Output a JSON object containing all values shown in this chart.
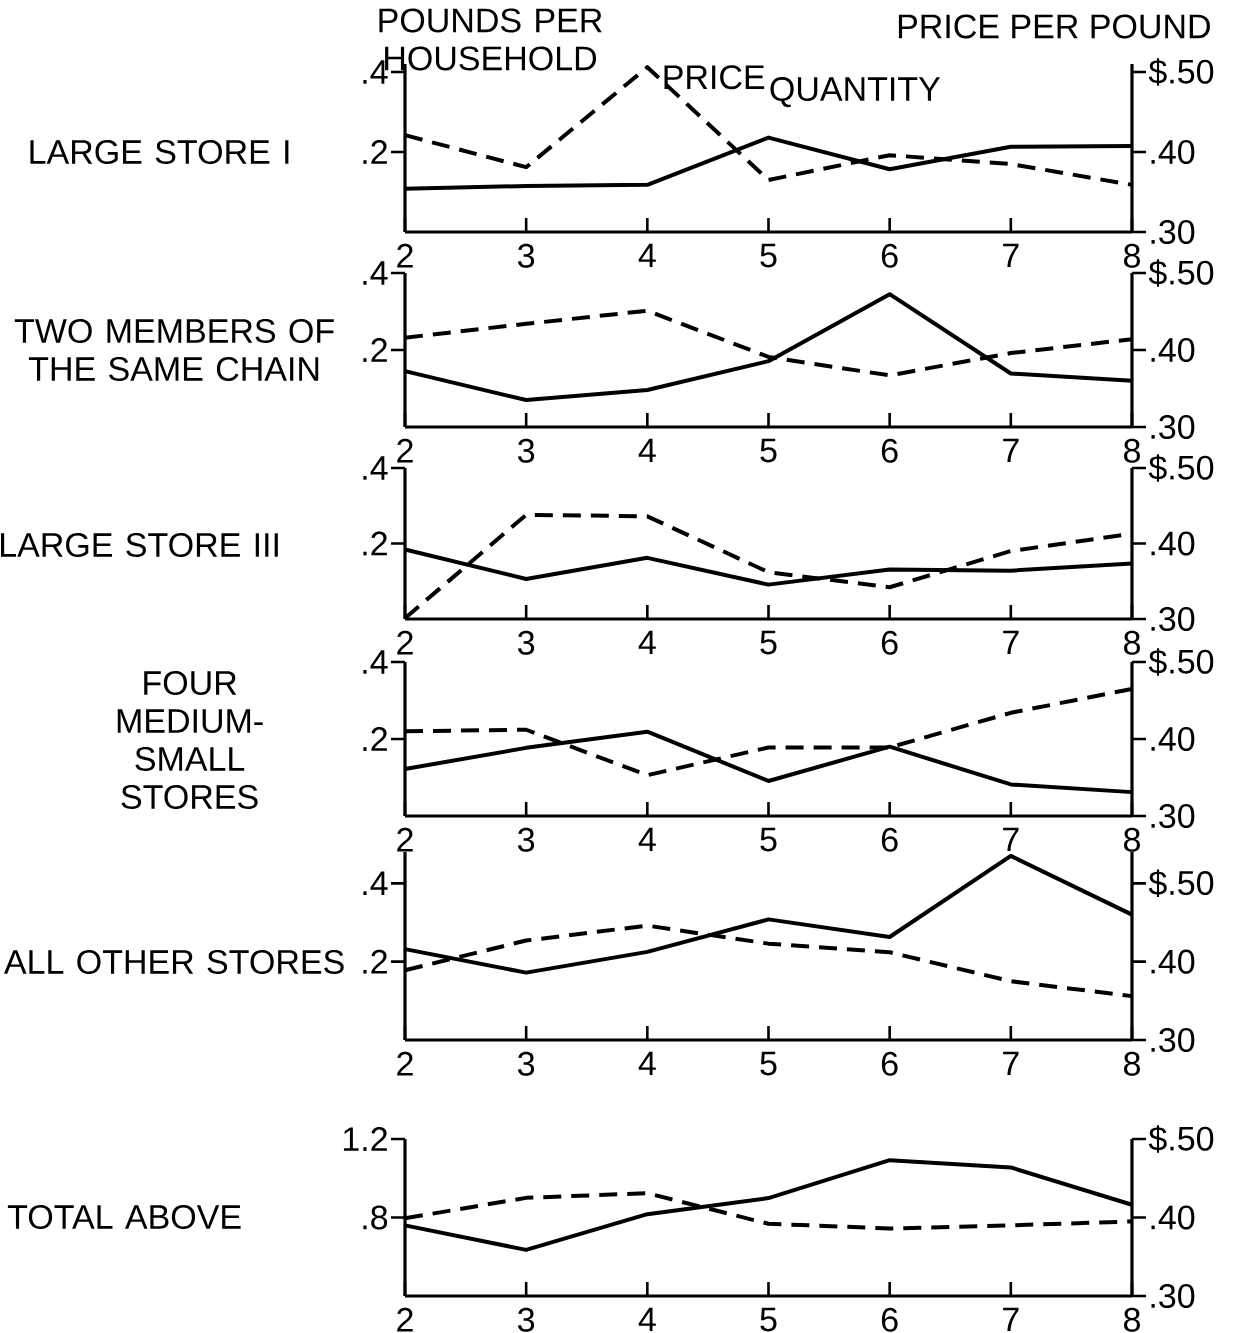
{
  "chart_data": [
    {
      "type": "line",
      "title": "LARGE STORE I",
      "ylabel": "POUNDS PER HOUSEHOLD",
      "y2label": "PRICE PER POUND",
      "x": [
        2,
        3,
        4,
        5,
        6,
        7,
        8
      ],
      "xlim": [
        2,
        8
      ],
      "xticks": [
        2,
        3,
        4,
        5,
        6,
        7,
        8
      ],
      "ylim": [
        0,
        0.42
      ],
      "yticks": [
        {
          "value": 0.2,
          "label": ".2"
        },
        {
          "value": 0.4,
          "label": ".4"
        }
      ],
      "y2lim": [
        0.3,
        0.51
      ],
      "y2ticks": [
        {
          "value": 0.3,
          "label": ".30"
        },
        {
          "value": 0.4,
          "label": ".40"
        },
        {
          "value": 0.5,
          "label": "$.50"
        }
      ],
      "marker": "none",
      "series": [
        {
          "name": "QUANTITY",
          "color": "#000000",
          "line_style": "solid",
          "values": [
            0.108,
            0.115,
            0.118,
            0.236,
            0.157,
            0.213,
            0.215
          ]
        },
        {
          "name": "PRICE",
          "color": "#000000",
          "line_style": "dashed",
          "axis": "y2",
          "values": [
            0.421,
            0.381,
            0.506,
            0.365,
            0.396,
            0.385,
            0.359
          ]
        }
      ]
    },
    {
      "type": "line",
      "title": "TWO MEMBERS OF THE SAME CHAIN",
      "x": [
        2,
        3,
        4,
        5,
        6,
        7,
        8
      ],
      "xlim": [
        2,
        8
      ],
      "xticks": [
        2,
        3,
        4,
        5,
        6,
        7,
        8
      ],
      "ylim": [
        0,
        0.4
      ],
      "yticks": [
        {
          "value": 0.2,
          "label": ".2"
        },
        {
          "value": 0.4,
          "label": ".4"
        }
      ],
      "y2lim": [
        0.3,
        0.5
      ],
      "y2ticks": [
        {
          "value": 0.3,
          "label": ".30"
        },
        {
          "value": 0.4,
          "label": ".40"
        },
        {
          "value": 0.5,
          "label": "$.50"
        }
      ],
      "marker": "none",
      "series": [
        {
          "color": "#000000",
          "line_style": "solid",
          "values": [
            0.145,
            0.07,
            0.096,
            0.171,
            0.345,
            0.139,
            0.12
          ]
        },
        {
          "color": "#000000",
          "line_style": "dashed",
          "axis": "y2",
          "values": [
            0.416,
            0.434,
            0.451,
            0.391,
            0.367,
            0.396,
            0.414
          ]
        }
      ]
    },
    {
      "type": "line",
      "title": "LARGE STORE III",
      "x": [
        2,
        3,
        4,
        5,
        6,
        7,
        8
      ],
      "xlim": [
        2,
        8
      ],
      "xticks": [
        2,
        3,
        4,
        5,
        6,
        7,
        8
      ],
      "ylim": [
        0,
        0.4
      ],
      "yticks": [
        {
          "value": 0.2,
          "label": ".2"
        },
        {
          "value": 0.4,
          "label": ".4"
        }
      ],
      "y2lim": [
        0.3,
        0.5
      ],
      "y2ticks": [
        {
          "value": 0.3,
          "label": ".30"
        },
        {
          "value": 0.4,
          "label": ".40"
        },
        {
          "value": 0.5,
          "label": "$.50"
        }
      ],
      "marker": "none",
      "series": [
        {
          "color": "#000000",
          "line_style": "solid",
          "values": [
            0.184,
            0.106,
            0.162,
            0.091,
            0.131,
            0.128,
            0.147
          ]
        },
        {
          "color": "#000000",
          "line_style": "dashed",
          "axis": "y2",
          "values": [
            0.301,
            0.438,
            0.436,
            0.362,
            0.342,
            0.39,
            0.413
          ]
        }
      ]
    },
    {
      "type": "line",
      "title": "FOUR MEDIUM-SMALL STORES",
      "x": [
        2,
        3,
        4,
        5,
        6,
        7,
        8
      ],
      "xlim": [
        2,
        8
      ],
      "xticks": [
        2,
        3,
        4,
        5,
        6,
        7,
        8
      ],
      "ylim": [
        0,
        0.4
      ],
      "yticks": [
        {
          "value": 0.2,
          "label": ".2"
        },
        {
          "value": 0.4,
          "label": ".4"
        }
      ],
      "y2lim": [
        0.3,
        0.5
      ],
      "y2ticks": [
        {
          "value": 0.3,
          "label": ".30"
        },
        {
          "value": 0.4,
          "label": ".40"
        },
        {
          "value": 0.5,
          "label": "$.50"
        }
      ],
      "marker": "none",
      "series": [
        {
          "color": "#000000",
          "line_style": "solid",
          "values": [
            0.122,
            0.177,
            0.219,
            0.091,
            0.18,
            0.082,
            0.062
          ]
        },
        {
          "color": "#000000",
          "line_style": "dashed",
          "axis": "y2",
          "values": [
            0.41,
            0.412,
            0.353,
            0.389,
            0.389,
            0.434,
            0.465
          ]
        }
      ]
    },
    {
      "type": "line",
      "title": "ALL OTHER STORES",
      "x": [
        2,
        3,
        4,
        5,
        6,
        7,
        8
      ],
      "xlim": [
        2,
        8
      ],
      "xticks": [
        2,
        3,
        4,
        5,
        6,
        7,
        8
      ],
      "ylim": [
        0,
        0.48
      ],
      "yticks": [
        {
          "value": 0.2,
          "label": ".2"
        },
        {
          "value": 0.4,
          "label": ".4"
        }
      ],
      "y2lim": [
        0.3,
        0.54
      ],
      "y2ticks": [
        {
          "value": 0.3,
          "label": ".30"
        },
        {
          "value": 0.4,
          "label": ".40"
        },
        {
          "value": 0.5,
          "label": "$.50"
        }
      ],
      "marker": "none",
      "series": [
        {
          "color": "#000000",
          "line_style": "solid",
          "values": [
            0.232,
            0.172,
            0.225,
            0.308,
            0.263,
            0.47,
            0.32
          ]
        },
        {
          "color": "#000000",
          "line_style": "dashed",
          "axis": "y2",
          "values": [
            0.389,
            0.427,
            0.446,
            0.423,
            0.412,
            0.375,
            0.356
          ]
        }
      ]
    },
    {
      "type": "line",
      "title": "TOTAL ABOVE",
      "x": [
        2,
        3,
        4,
        5,
        6,
        7,
        8
      ],
      "xlim": [
        2,
        8
      ],
      "xticks": [
        2,
        3,
        4,
        5,
        6,
        7,
        8
      ],
      "ylim": [
        0.4,
        1.2
      ],
      "yticks": [
        {
          "value": 0.8,
          "label": ".8"
        },
        {
          "value": 1.2,
          "label": "1.2"
        }
      ],
      "y2lim": [
        0.3,
        0.5
      ],
      "y2ticks": [
        {
          "value": 0.3,
          "label": ".30"
        },
        {
          "value": 0.4,
          "label": ".40"
        },
        {
          "value": 0.5,
          "label": "$.50"
        }
      ],
      "marker": "none",
      "series": [
        {
          "color": "#000000",
          "line_style": "solid",
          "values": [
            0.76,
            0.635,
            0.817,
            0.899,
            1.092,
            1.055,
            0.865
          ]
        },
        {
          "color": "#000000",
          "line_style": "dashed",
          "axis": "y2",
          "values": [
            0.399,
            0.425,
            0.431,
            0.392,
            0.386,
            0.39,
            0.395
          ]
        }
      ]
    }
  ]
}
